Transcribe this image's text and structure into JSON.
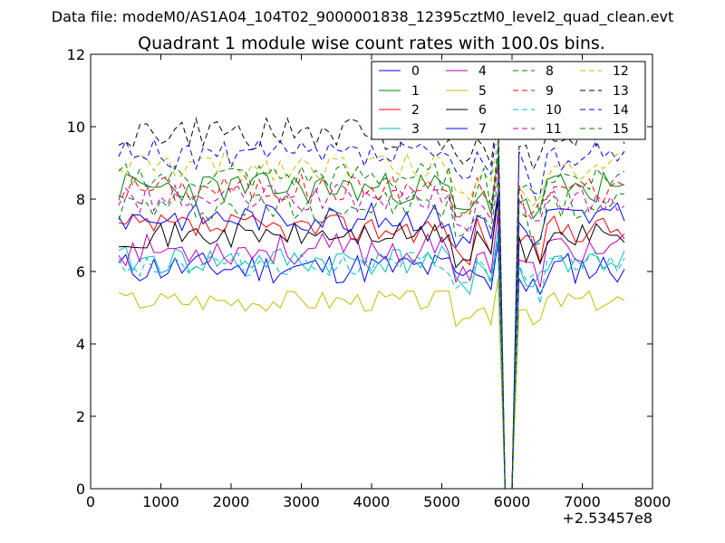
{
  "chart_data": {
    "type": "line",
    "suptitle": "Data file: modeM0/AS1A04_104T02_9000001838_12395cztM0_level2_quad_clean.evt",
    "title": "Quadrant 1 module wise count rates with 100.0s bins.",
    "xlabel": "",
    "ylabel": "",
    "x_offset_label": "+2.53457e8",
    "xlim": [
      0,
      8000
    ],
    "ylim": [
      0,
      12
    ],
    "x_ticks": [
      0,
      1000,
      2000,
      3000,
      4000,
      5000,
      6000,
      7000,
      8000
    ],
    "y_ticks": [
      0,
      2,
      4,
      6,
      8,
      10,
      12
    ],
    "x_tick_labels": [
      "0",
      "1000",
      "2000",
      "3000",
      "4000",
      "5000",
      "6000",
      "7000",
      "8000"
    ],
    "y_tick_labels": [
      "0",
      "2",
      "4",
      "6",
      "8",
      "10",
      "12"
    ],
    "legend_position": "top-right",
    "legend_columns": 4,
    "x_start": 400,
    "x_step": 100,
    "gap_start": 5900,
    "gap_end": 6000,
    "series": [
      {
        "name": "0",
        "color": "#0000ff",
        "style": "solid",
        "base": 6.1,
        "amp": 0.45,
        "seed": 11,
        "dip": 5.9
      },
      {
        "name": "1",
        "color": "#008000",
        "style": "solid",
        "base": 8.3,
        "amp": 0.45,
        "seed": 23,
        "dip": 7.6
      },
      {
        "name": "2",
        "color": "#ff0000",
        "style": "solid",
        "base": 7.2,
        "amp": 0.4,
        "seed": 37,
        "dip": 6.4
      },
      {
        "name": "3",
        "color": "#00bfbf",
        "style": "solid",
        "base": 6.3,
        "amp": 0.4,
        "seed": 41,
        "dip": 5.6
      },
      {
        "name": "4",
        "color": "#bf00bf",
        "style": "solid",
        "base": 6.6,
        "amp": 0.45,
        "seed": 53,
        "dip": 6.0
      },
      {
        "name": "5",
        "color": "#bfbf00",
        "style": "solid",
        "base": 5.2,
        "amp": 0.3,
        "seed": 67,
        "dip": 4.7
      },
      {
        "name": "6",
        "color": "#000000",
        "style": "solid",
        "base": 7.0,
        "amp": 0.35,
        "seed": 71,
        "dip": 6.3
      },
      {
        "name": "7",
        "color": "#0000ff",
        "style": "solid",
        "base": 7.5,
        "amp": 0.4,
        "seed": 83,
        "dip": 6.8
      },
      {
        "name": "8",
        "color": "#008000",
        "style": "dashed",
        "base": 7.8,
        "amp": 0.45,
        "seed": 97,
        "dip": 7.0
      },
      {
        "name": "9",
        "color": "#ff0000",
        "style": "dashed",
        "base": 8.3,
        "amp": 0.4,
        "seed": 101,
        "dip": 7.5
      },
      {
        "name": "10",
        "color": "#00bfbf",
        "style": "dashed",
        "base": 6.2,
        "amp": 0.35,
        "seed": 113,
        "dip": 5.5
      },
      {
        "name": "11",
        "color": "#bf00bf",
        "style": "dashed",
        "base": 8.0,
        "amp": 0.4,
        "seed": 127,
        "dip": 7.2
      },
      {
        "name": "12",
        "color": "#bfbf00",
        "style": "dashed",
        "base": 8.9,
        "amp": 0.4,
        "seed": 131,
        "dip": 8.1
      },
      {
        "name": "13",
        "color": "#000000",
        "style": "dashed",
        "base": 9.8,
        "amp": 0.45,
        "seed": 149,
        "dip": 9.0
      },
      {
        "name": "14",
        "color": "#0000ff",
        "style": "dashed",
        "base": 9.2,
        "amp": 0.45,
        "seed": 157,
        "dip": 8.5
      },
      {
        "name": "15",
        "color": "#008000",
        "style": "dashed",
        "base": 8.6,
        "amp": 0.4,
        "seed": 163,
        "dip": 7.8
      }
    ]
  }
}
